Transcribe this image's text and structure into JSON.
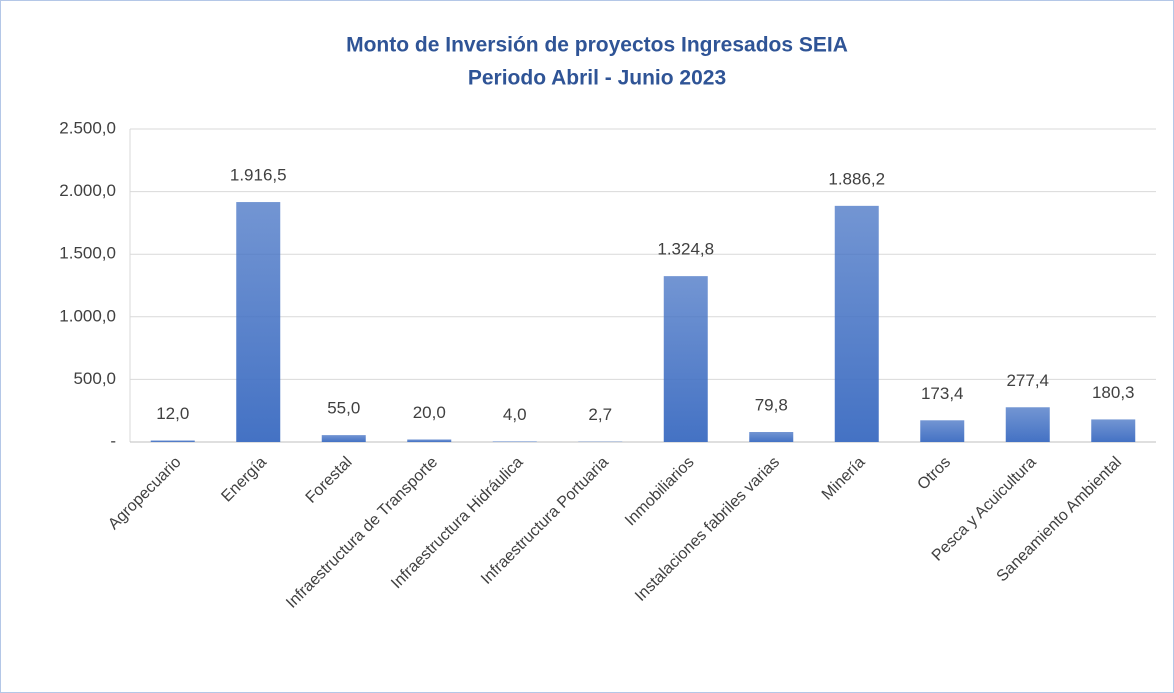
{
  "chart_data": {
    "type": "bar",
    "title": "Monto de Inversión de proyectos Ingresados SEIA",
    "subtitle": "Periodo Abril - Junio 2023",
    "categories": [
      "Agropecuario",
      "Energía",
      "Forestal",
      "Infraestructura de Transporte",
      "Infraestructura Hidráulica",
      "Infraestructura Portuaria",
      "Inmobiliarios",
      "Instalaciones fabriles varias",
      "Minería",
      "Otros",
      "Pesca y Acuicultura",
      "Saneamiento Ambiental"
    ],
    "values": [
      12.0,
      1916.5,
      55.0,
      20.0,
      4.0,
      2.7,
      1324.8,
      79.8,
      1886.2,
      173.4,
      277.4,
      180.3
    ],
    "value_labels": [
      "12,0",
      "1.916,5",
      "55,0",
      "20,0",
      "4,0",
      "2,7",
      "1.324,8",
      "79,8",
      "1.886,2",
      "173,4",
      "277,4",
      "180,3"
    ],
    "color": "#4472c4",
    "ylim": [
      0,
      2500
    ],
    "yticks": [
      {
        "value": 0,
        "label": "-"
      },
      {
        "value": 500,
        "label": "500,0"
      },
      {
        "value": 1000,
        "label": "1.000,0"
      },
      {
        "value": 1500,
        "label": "1.500,0"
      },
      {
        "value": 2000,
        "label": "2.000,0"
      },
      {
        "value": 2500,
        "label": "2.500,0"
      }
    ],
    "grid": true
  }
}
